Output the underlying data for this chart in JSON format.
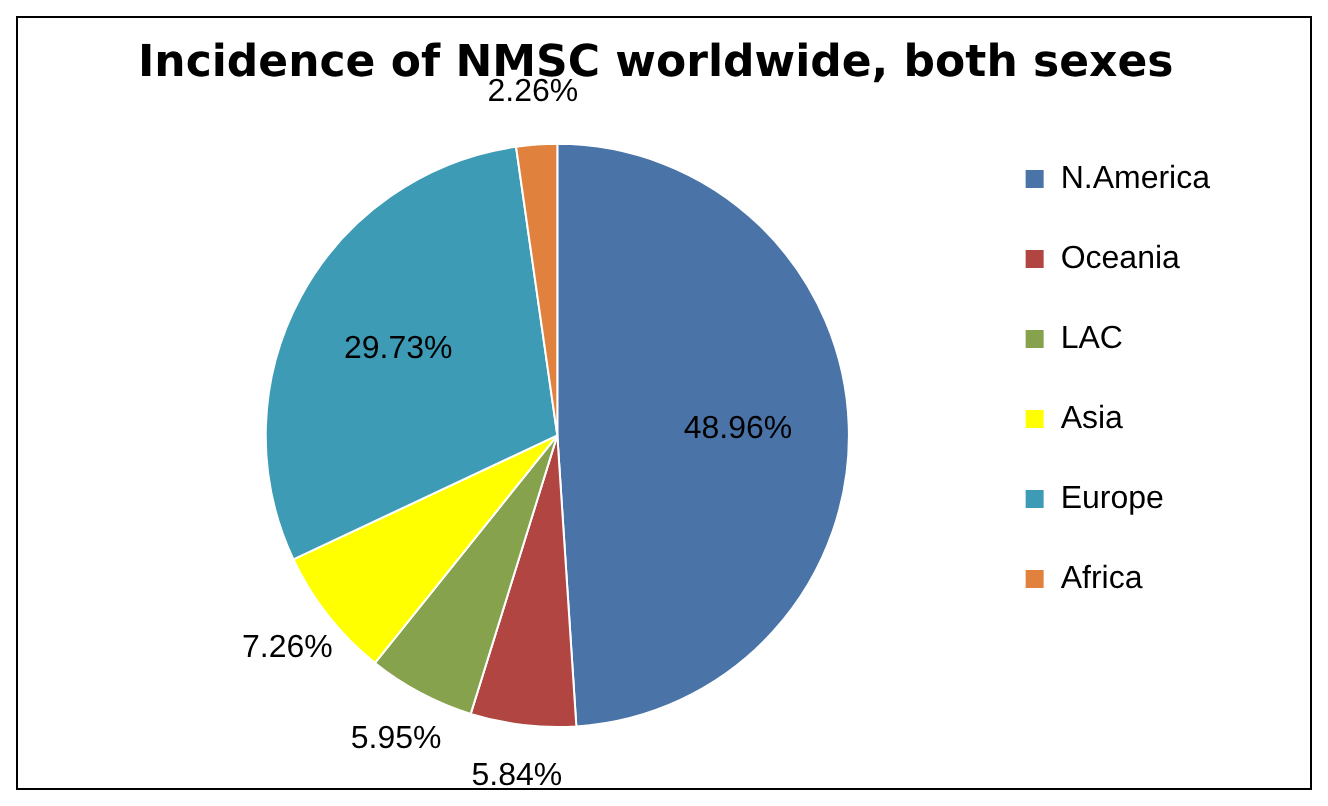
{
  "chart_data": {
    "type": "pie",
    "title": "Incidence of NMSC worldwide, both sexes",
    "categories": [
      "N.America",
      "Oceania",
      "LAC",
      "Asia",
      "Europe",
      "Africa"
    ],
    "values": [
      48.96,
      5.84,
      5.95,
      7.26,
      29.73,
      2.26
    ],
    "value_labels": [
      "48.96%",
      "5.84%",
      "5.95%",
      "7.26%",
      "29.73%",
      "2.26%"
    ],
    "colors": [
      "#4a73a8",
      "#b04542",
      "#86a24c",
      "#ffff00",
      "#3d9bb5",
      "#e0823d"
    ],
    "legend": "right"
  }
}
